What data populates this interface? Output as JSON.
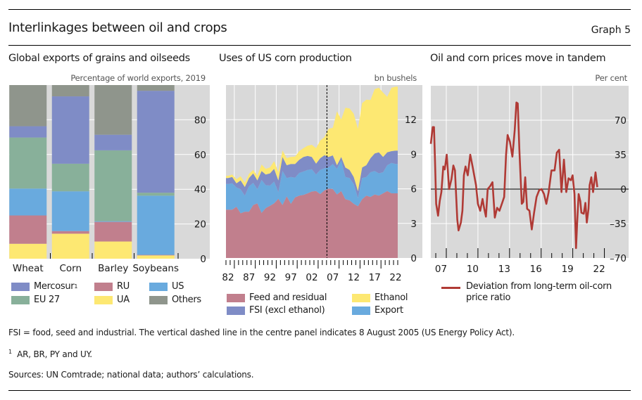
{
  "header": {
    "title": "Interlinkages between oil and crops",
    "graph_number": "Graph 5"
  },
  "colors": {
    "mercosur": "#7f8cc6",
    "eu27": "#88b09a",
    "ru": "#c17f8d",
    "ua": "#fde872",
    "us": "#69aade",
    "others": "#8f958c",
    "feed": "#c17f8d",
    "fsi": "#7f8cc6",
    "ethanol": "#fde872",
    "export": "#69aade",
    "deviation_line": "#b03a35",
    "plot_bg": "#d9d9d9"
  },
  "footnotes": {
    "fsi_note": "FSI = food, seed and industrial. The vertical dashed line in the centre panel indicates 8 August 2005 (US Energy Policy Act).",
    "note1_marker": "1",
    "note1": "AR, BR, PY and UY.",
    "sources": "Sources: UN Comtrade; national data; authors’ calculations."
  },
  "chart_data": [
    {
      "id": "left",
      "type": "bar",
      "stacked": true,
      "title": "Global exports of grains and oilseeds",
      "unit_label": "Percentage of world exports, 2019",
      "xlabel": "",
      "ylabel": "",
      "ylim": [
        0,
        100
      ],
      "yticks": [
        0,
        20,
        40,
        60,
        80
      ],
      "y_axis_side": "right",
      "grid": true,
      "categories": [
        "Wheat",
        "Corn",
        "Barley",
        "Soybeans"
      ],
      "series": [
        {
          "key": "ua",
          "name": "UA",
          "values": [
            8.6,
            14.4,
            9.9,
            1.9
          ]
        },
        {
          "key": "ru",
          "name": "RU",
          "values": [
            16.3,
            1.5,
            11.3,
            0.3
          ]
        },
        {
          "key": "us",
          "name": "US",
          "values": [
            15.5,
            22.9,
            0.4,
            34.1
          ]
        },
        {
          "key": "eu27",
          "name": "EU 27",
          "values": [
            29.4,
            15.9,
            40.8,
            1.7
          ]
        },
        {
          "key": "mercosur",
          "name": "Mercosur",
          "name_sup": "1",
          "values": [
            6.5,
            38.8,
            9.0,
            58.7
          ]
        },
        {
          "key": "others",
          "name": "Others",
          "values": [
            23.7,
            6.5,
            28.6,
            3.3
          ]
        }
      ],
      "legend": [
        {
          "key": "mercosur",
          "label": "Mercosur",
          "sup": "1"
        },
        {
          "key": "ru",
          "label": "RU",
          "sup": ""
        },
        {
          "key": "us",
          "label": "US",
          "sup": ""
        },
        {
          "key": "eu27",
          "label": "EU 27",
          "sup": ""
        },
        {
          "key": "ua",
          "label": "UA",
          "sup": ""
        },
        {
          "key": "others",
          "label": "Others",
          "sup": ""
        }
      ],
      "legend_placement": "bottom"
    },
    {
      "id": "centre",
      "type": "area",
      "stacked": true,
      "title": "Uses of US corn production",
      "unit_label": "bn bushels",
      "xlabel": "",
      "ylabel": "",
      "ylim": [
        0,
        15
      ],
      "yticks": [
        0,
        3,
        6,
        9,
        12
      ],
      "y_axis_side": "right",
      "grid": true,
      "x_tick_labels": [
        "82",
        "87",
        "92",
        "97",
        "02",
        "07",
        "12",
        "17",
        "22"
      ],
      "x_tick_years": [
        1982,
        1987,
        1992,
        1997,
        2002,
        2007,
        2012,
        2017,
        2022
      ],
      "x": [
        1982,
        1983,
        1984,
        1985,
        1986,
        1987,
        1988,
        1989,
        1990,
        1991,
        1992,
        1993,
        1994,
        1995,
        1996,
        1997,
        1998,
        1999,
        2000,
        2001,
        2002,
        2003,
        2004,
        2005,
        2006,
        2007,
        2008,
        2009,
        2010,
        2011,
        2012,
        2013,
        2014,
        2015,
        2016,
        2017,
        2018,
        2019,
        2020,
        2021,
        2022
      ],
      "series": [
        {
          "key": "feed",
          "name": "Feed and residual",
          "values": [
            4.19,
            4.19,
            4.45,
            3.88,
            4.02,
            4.02,
            4.6,
            4.74,
            3.92,
            4.33,
            4.53,
            4.74,
            5.14,
            4.6,
            5.35,
            4.7,
            5.26,
            5.41,
            5.47,
            5.61,
            5.77,
            5.81,
            5.55,
            5.87,
            6.02,
            5.98,
            5.51,
            5.81,
            5.1,
            5.0,
            4.7,
            4.49,
            5.1,
            5.41,
            5.3,
            5.51,
            5.41,
            5.61,
            5.81,
            5.61,
            5.61
          ]
        },
        {
          "key": "export",
          "name": "Export",
          "values": [
            2.23,
            2.29,
            1.67,
            2.08,
            1.39,
            2.2,
            1.92,
            1.22,
            2.85,
            1.99,
            1.75,
            1.89,
            0.57,
            2.94,
            1.58,
            2.33,
            1.71,
            1.97,
            2.03,
            2.03,
            1.93,
            1.43,
            2.09,
            1.92,
            1.83,
            2.17,
            2.23,
            2.65,
            1.93,
            1.93,
            1.72,
            0.71,
            1.83,
            1.62,
            2.14,
            2.03,
            1.93,
            1.83,
            2.24,
            2.64,
            2.54
          ]
        },
        {
          "key": "fsi",
          "name": "FSI (excl ethanol)",
          "values": [
            0.51,
            0.55,
            0.36,
            0.77,
            0.75,
            0.71,
            0.82,
            0.77,
            0.77,
            0.92,
            1.06,
            1.11,
            1.02,
            1.22,
            1.12,
            1.12,
            1.18,
            1.14,
            1.26,
            1.22,
            1.06,
            0.95,
            1.02,
            1.13,
            0.91,
            0.75,
            0.31,
            0.3,
            0.82,
            0.71,
            0.61,
            0.61,
            0.92,
            1.02,
            1.22,
            1.53,
            1.83,
            1.32,
            1.12,
            1.02,
            1.16
          ]
        },
        {
          "key": "ethanol",
          "name": "Ethanol",
          "values": [
            0.2,
            0.21,
            0.35,
            0.36,
            0.36,
            0.37,
            0.3,
            0.4,
            0.57,
            0.5,
            0.51,
            0.66,
            0.71,
            0.57,
            0.61,
            0.61,
            0.65,
            0.75,
            0.77,
            0.88,
            1.06,
            1.34,
            1.52,
            1.57,
            2.44,
            2.4,
            4.67,
            3.25,
            5.18,
            5.33,
            5.49,
            5.39,
            5.58,
            5.69,
            5.04,
            5.58,
            5.59,
            5.59,
            4.81,
            5.49,
            5.55
          ]
        }
      ],
      "annotation": {
        "type": "vertical-dashed-line",
        "x": 2005.6,
        "label": "8 August 2005 (US Energy Policy Act)"
      },
      "legend": [
        {
          "key": "feed",
          "label": "Feed and residual"
        },
        {
          "key": "ethanol",
          "label": "Ethanol"
        },
        {
          "key": "fsi",
          "label": "FSI (excl ethanol)"
        },
        {
          "key": "export",
          "label": "Export"
        }
      ],
      "legend_placement": "bottom"
    },
    {
      "id": "right",
      "type": "line",
      "title": "Oil and corn prices move in tandem",
      "unit_label": "Per cent",
      "xlabel": "",
      "ylabel": "",
      "xlim": [
        2006.53,
        2025.3
      ],
      "ylim": [
        -70,
        105
      ],
      "yticks": [
        -70,
        -35,
        0,
        35,
        70
      ],
      "y_tick_labels": [
        "–70",
        "–35",
        "0",
        "35",
        "70"
      ],
      "y_axis_side": "right",
      "grid": true,
      "zero_line": true,
      "x_tick_labels": [
        "07",
        "10",
        "13",
        "16",
        "19",
        "22"
      ],
      "x_tick_years": [
        2007,
        2010,
        2013,
        2016,
        2019,
        2022
      ],
      "series": [
        {
          "key": "deviation",
          "name": "Deviation from long-term oil-corn price ratio",
          "x": [
            2006.53,
            2006.71,
            2006.83,
            2006.93,
            2007.04,
            2007.22,
            2007.38,
            2007.53,
            2007.71,
            2007.85,
            2008.04,
            2008.27,
            2008.49,
            2008.67,
            2008.82,
            2009.04,
            2009.16,
            2009.38,
            2009.53,
            2009.67,
            2009.82,
            2010.04,
            2010.27,
            2010.49,
            2010.82,
            2011.0,
            2011.22,
            2011.44,
            2011.6,
            2011.76,
            2011.93,
            2012.16,
            2012.38,
            2012.6,
            2012.82,
            2013.04,
            2013.27,
            2013.49,
            2013.67,
            2013.82,
            2014.04,
            2014.27,
            2014.49,
            2014.65,
            2014.78,
            2014.93,
            2015.16,
            2015.31,
            2015.49,
            2015.67,
            2015.89,
            2016.11,
            2016.33,
            2016.56,
            2016.82,
            2017.04,
            2017.27,
            2017.49,
            2017.71,
            2017.98,
            2018.27,
            2018.49,
            2018.71,
            2018.93,
            2019.16,
            2019.38,
            2019.6,
            2019.82,
            2019.98,
            2020.16,
            2020.31,
            2020.42,
            2020.56,
            2020.71,
            2020.82,
            2021.04,
            2021.2,
            2021.33,
            2021.49,
            2021.6,
            2021.76,
            2021.93,
            2022.16,
            2022.33
          ],
          "values": [
            46,
            63,
            63,
            28,
            -15,
            -27,
            -12,
            -3,
            23,
            20,
            35,
            0,
            10,
            24,
            19,
            -31,
            -42,
            -34,
            -22,
            14,
            23,
            14,
            35,
            23,
            4,
            -15,
            -22,
            -10,
            -20,
            -28,
            0,
            3,
            7,
            -29,
            -19,
            -22,
            -15,
            -8,
            35,
            55,
            48,
            33,
            60,
            88,
            87,
            40,
            -15,
            -13,
            12,
            -20,
            -22,
            -41,
            -24,
            -8,
            -1,
            0,
            -5,
            -15,
            -3,
            19,
            19,
            37,
            40,
            -3,
            30,
            -3,
            11,
            9,
            14,
            -5,
            -60,
            -34,
            -5,
            -12,
            -24,
            -25,
            -14,
            -34,
            -20,
            4,
            12,
            -3,
            17,
            2
          ]
        }
      ],
      "legend": [
        {
          "key": "deviation",
          "label_line1": "Deviation from long-term oil-corn",
          "label_line2": "price ratio"
        }
      ],
      "legend_placement": "bottom"
    }
  ]
}
